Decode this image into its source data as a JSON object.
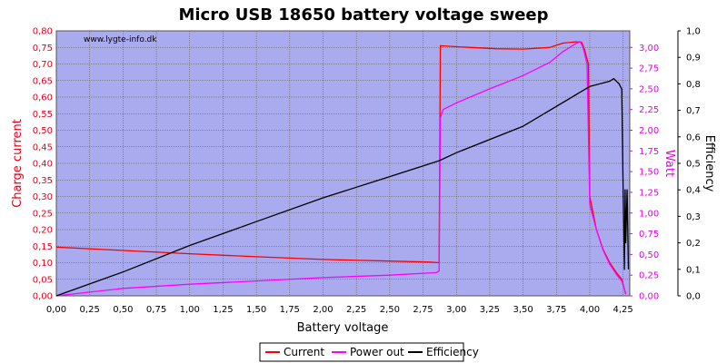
{
  "chart_data": {
    "type": "line",
    "title": "Micro USB 18650 battery voltage sweep",
    "watermark": "www.lygte-info.dk",
    "xlabel": "Battery voltage",
    "xlim": [
      0,
      4.3
    ],
    "x_ticks": [
      "0,00",
      "0,25",
      "0,50",
      "0,75",
      "1,00",
      "1,25",
      "1,50",
      "1,75",
      "2,00",
      "2,25",
      "2,50",
      "2,75",
      "3,00",
      "3,25",
      "3,50",
      "3,75",
      "4,00",
      "4,25"
    ],
    "y_left": {
      "label": "Charge current",
      "lim": [
        0,
        0.8
      ],
      "ticks": [
        "0,00",
        "0,05",
        "0,10",
        "0,15",
        "0,20",
        "0,25",
        "0,30",
        "0,35",
        "0,40",
        "0,45",
        "0,50",
        "0,55",
        "0,60",
        "0,65",
        "0,70",
        "0,75",
        "0,80"
      ],
      "color": "#e8001c"
    },
    "y_right_watt": {
      "label": "Watt",
      "lim": [
        0,
        3.2
      ],
      "ticks": [
        "0,00",
        "0,25",
        "0,50",
        "0,75",
        "1,00",
        "1,25",
        "1,50",
        "1,75",
        "2,00",
        "2,25",
        "2,50",
        "2,75",
        "3,00"
      ],
      "color": "#e600e6"
    },
    "y_right_eff": {
      "label": "Efficiency",
      "lim": [
        0,
        1.0
      ],
      "ticks": [
        "0,0",
        "0,1",
        "0,2",
        "0,3",
        "0,4",
        "0,5",
        "0,6",
        "0,7",
        "0,8",
        "0,9",
        "1,0"
      ],
      "color": "#000000"
    },
    "plot_background": "#aaaaee",
    "grid": true,
    "legend_position": "bottom-center",
    "series": [
      {
        "name": "Current",
        "axis": "left",
        "color": "#ff0000",
        "points": [
          [
            0.0,
            0.147
          ],
          [
            0.5,
            0.137
          ],
          [
            1.0,
            0.127
          ],
          [
            1.5,
            0.118
          ],
          [
            2.0,
            0.11
          ],
          [
            2.5,
            0.105
          ],
          [
            2.8,
            0.102
          ],
          [
            2.87,
            0.1
          ],
          [
            2.88,
            0.755
          ],
          [
            3.0,
            0.752
          ],
          [
            3.3,
            0.746
          ],
          [
            3.5,
            0.745
          ],
          [
            3.7,
            0.75
          ],
          [
            3.8,
            0.763
          ],
          [
            3.9,
            0.767
          ],
          [
            3.94,
            0.765
          ],
          [
            3.96,
            0.745
          ],
          [
            3.99,
            0.7
          ],
          [
            4.0,
            0.3
          ],
          [
            4.05,
            0.2
          ],
          [
            4.1,
            0.14
          ],
          [
            4.15,
            0.1
          ],
          [
            4.2,
            0.07
          ],
          [
            4.24,
            0.05
          ],
          [
            4.26,
            0.02
          ],
          [
            4.27,
            0.005
          ]
        ]
      },
      {
        "name": "Power out",
        "axis": "watt",
        "color": "#ff00ff",
        "points": [
          [
            0.0,
            0.0
          ],
          [
            0.5,
            0.09
          ],
          [
            1.0,
            0.14
          ],
          [
            1.5,
            0.18
          ],
          [
            2.0,
            0.22
          ],
          [
            2.5,
            0.25
          ],
          [
            2.85,
            0.28
          ],
          [
            2.87,
            0.3
          ],
          [
            2.88,
            2.15
          ],
          [
            2.9,
            2.25
          ],
          [
            3.0,
            2.33
          ],
          [
            3.25,
            2.5
          ],
          [
            3.5,
            2.66
          ],
          [
            3.7,
            2.82
          ],
          [
            3.8,
            2.95
          ],
          [
            3.9,
            3.05
          ],
          [
            3.93,
            3.07
          ],
          [
            3.95,
            3.0
          ],
          [
            3.98,
            2.8
          ],
          [
            4.0,
            1.1
          ],
          [
            4.05,
            0.8
          ],
          [
            4.1,
            0.55
          ],
          [
            4.15,
            0.38
          ],
          [
            4.2,
            0.26
          ],
          [
            4.24,
            0.18
          ],
          [
            4.26,
            0.08
          ],
          [
            4.27,
            0.02
          ]
        ]
      },
      {
        "name": "Efficiency",
        "axis": "eff",
        "color": "#000000",
        "points": [
          [
            0.0,
            0.0
          ],
          [
            0.5,
            0.09
          ],
          [
            1.0,
            0.19
          ],
          [
            1.5,
            0.28
          ],
          [
            2.0,
            0.37
          ],
          [
            2.5,
            0.45
          ],
          [
            2.87,
            0.51
          ],
          [
            3.0,
            0.54
          ],
          [
            3.5,
            0.64
          ],
          [
            4.0,
            0.79
          ],
          [
            4.15,
            0.81
          ],
          [
            4.18,
            0.82
          ],
          [
            4.2,
            0.81
          ],
          [
            4.22,
            0.8
          ],
          [
            4.24,
            0.78
          ],
          [
            4.25,
            0.4
          ],
          [
            4.26,
            0.1
          ],
          [
            4.265,
            0.4
          ],
          [
            4.27,
            0.2
          ],
          [
            4.28,
            0.4
          ],
          [
            4.29,
            0.1
          ]
        ]
      }
    ]
  }
}
